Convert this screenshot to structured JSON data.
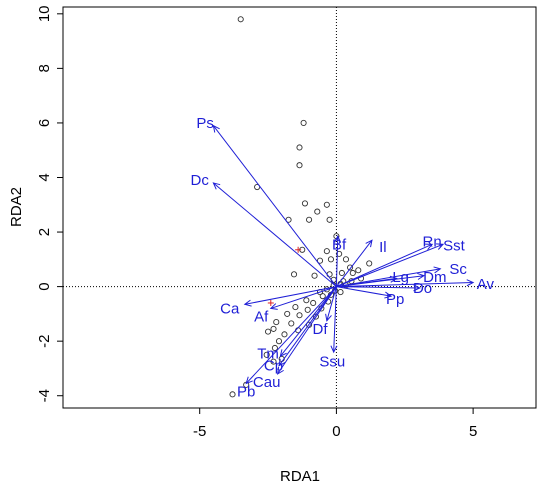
{
  "chart_data": {
    "type": "scatter",
    "subtype": "rda-biplot",
    "xlabel": "RDA1",
    "ylabel": "RDA2",
    "xlim": [
      -10,
      7.3
    ],
    "ylim": [
      -4.45,
      10.25
    ],
    "x_ticks": [
      -5,
      0,
      5
    ],
    "y_ticks": [
      -4,
      -2,
      0,
      2,
      4,
      6,
      8,
      10
    ],
    "grid": false,
    "reference_lines": {
      "x": 0,
      "y": 0,
      "style": "dotted"
    },
    "colors": {
      "arrows": "#1f1fd6",
      "points": "#333333",
      "centroids": "#dd2222",
      "axis": "#000000"
    },
    "arrows": [
      {
        "label": "Ps",
        "x": -4.5,
        "y": 5.9,
        "lx": -4.8,
        "ly": 6.0
      },
      {
        "label": "Dc",
        "x": -4.5,
        "y": 3.8,
        "lx": -5.0,
        "ly": 3.9
      },
      {
        "label": "Bf",
        "x": 0.05,
        "y": 1.85,
        "lx": 0.1,
        "ly": 1.55
      },
      {
        "label": "Il",
        "x": 1.3,
        "y": 1.7,
        "lx": 1.7,
        "ly": 1.45
      },
      {
        "label": "Rn",
        "x": 3.5,
        "y": 1.55,
        "lx": 3.5,
        "ly": 1.65
      },
      {
        "label": "Sst",
        "x": 3.9,
        "y": 1.55,
        "lx": 4.3,
        "ly": 1.5
      },
      {
        "label": "Sc",
        "x": 3.8,
        "y": 0.65,
        "lx": 4.45,
        "ly": 0.65
      },
      {
        "label": "Dm",
        "x": 3.2,
        "y": 0.4,
        "lx": 3.6,
        "ly": 0.35
      },
      {
        "label": "Lg",
        "x": 2.2,
        "y": 0.3,
        "lx": 2.35,
        "ly": 0.35
      },
      {
        "label": "Av",
        "x": 5.0,
        "y": 0.15,
        "lx": 5.45,
        "ly": 0.1
      },
      {
        "label": "Do",
        "x": 3.05,
        "y": -0.05,
        "lx": 3.15,
        "ly": -0.05
      },
      {
        "label": "Pp",
        "x": 2.0,
        "y": -0.35,
        "lx": 2.15,
        "ly": -0.45
      },
      {
        "label": "Af",
        "x": -2.4,
        "y": -0.8,
        "lx": -2.75,
        "ly": -1.1
      },
      {
        "label": "Ca",
        "x": -3.35,
        "y": -0.65,
        "lx": -3.9,
        "ly": -0.8
      },
      {
        "label": "Df",
        "x": -0.35,
        "y": -1.25,
        "lx": -0.6,
        "ly": -1.55
      },
      {
        "label": "Ssu",
        "x": -0.1,
        "y": -2.4,
        "lx": -0.15,
        "ly": -2.75
      },
      {
        "label": "Tm",
        "x": -2.05,
        "y": -2.55,
        "lx": -2.5,
        "ly": -2.45
      },
      {
        "label": "Cp",
        "x": -2.1,
        "y": -2.9,
        "lx": -2.3,
        "ly": -2.9
      },
      {
        "label": "Cau",
        "x": -2.15,
        "y": -3.2,
        "lx": -2.55,
        "ly": -3.5
      },
      {
        "label": "Pb",
        "x": -3.3,
        "y": -3.55,
        "lx": -3.3,
        "ly": -3.85
      }
    ],
    "points": [
      [
        -3.5,
        9.8
      ],
      [
        -1.2,
        6.0
      ],
      [
        -1.35,
        5.1
      ],
      [
        -1.35,
        4.45
      ],
      [
        -2.9,
        3.65
      ],
      [
        -1.15,
        3.05
      ],
      [
        -0.35,
        3.0
      ],
      [
        -0.7,
        2.75
      ],
      [
        -1.75,
        2.45
      ],
      [
        -1.0,
        2.45
      ],
      [
        -0.25,
        2.45
      ],
      [
        0.0,
        1.85
      ],
      [
        -1.25,
        1.35
      ],
      [
        -0.35,
        1.3
      ],
      [
        0.1,
        1.2
      ],
      [
        -0.6,
        0.95
      ],
      [
        -0.2,
        1.0
      ],
      [
        0.35,
        1.0
      ],
      [
        0.5,
        0.7
      ],
      [
        -1.55,
        0.45
      ],
      [
        -0.8,
        0.4
      ],
      [
        -0.25,
        0.45
      ],
      [
        0.2,
        0.5
      ],
      [
        0.6,
        0.5
      ],
      [
        0.8,
        0.6
      ],
      [
        1.2,
        0.85
      ],
      [
        -0.1,
        0.25
      ],
      [
        0.25,
        0.2
      ],
      [
        0.55,
        0.2
      ],
      [
        0.9,
        0.3
      ],
      [
        -0.1,
        0.05
      ],
      [
        0.15,
        0.1
      ],
      [
        0.35,
        0.05
      ],
      [
        -0.35,
        -0.1
      ],
      [
        -0.05,
        -0.15
      ],
      [
        0.15,
        -0.2
      ],
      [
        -0.6,
        -0.2
      ],
      [
        -0.5,
        -0.35
      ],
      [
        -0.2,
        -0.3
      ],
      [
        -1.1,
        -0.5
      ],
      [
        -0.85,
        -0.6
      ],
      [
        -0.3,
        -0.55
      ],
      [
        -1.5,
        -0.75
      ],
      [
        -1.05,
        -0.85
      ],
      [
        -0.55,
        -0.8
      ],
      [
        -1.8,
        -1.0
      ],
      [
        -1.35,
        -1.05
      ],
      [
        -0.75,
        -1.1
      ],
      [
        -2.2,
        -1.3
      ],
      [
        -1.65,
        -1.35
      ],
      [
        -1.0,
        -1.4
      ],
      [
        -2.3,
        -1.55
      ],
      [
        -1.4,
        -1.6
      ],
      [
        -2.5,
        -1.65
      ],
      [
        -1.9,
        -1.75
      ],
      [
        -2.1,
        -2.0
      ],
      [
        -2.25,
        -2.25
      ],
      [
        -2.55,
        -2.5
      ],
      [
        -2.0,
        -2.65
      ],
      [
        -2.3,
        -2.75
      ],
      [
        -3.3,
        -3.6
      ],
      [
        -3.8,
        -3.95
      ]
    ],
    "centroids": [
      [
        -1.4,
        1.35
      ],
      [
        -2.4,
        -0.6
      ]
    ]
  }
}
